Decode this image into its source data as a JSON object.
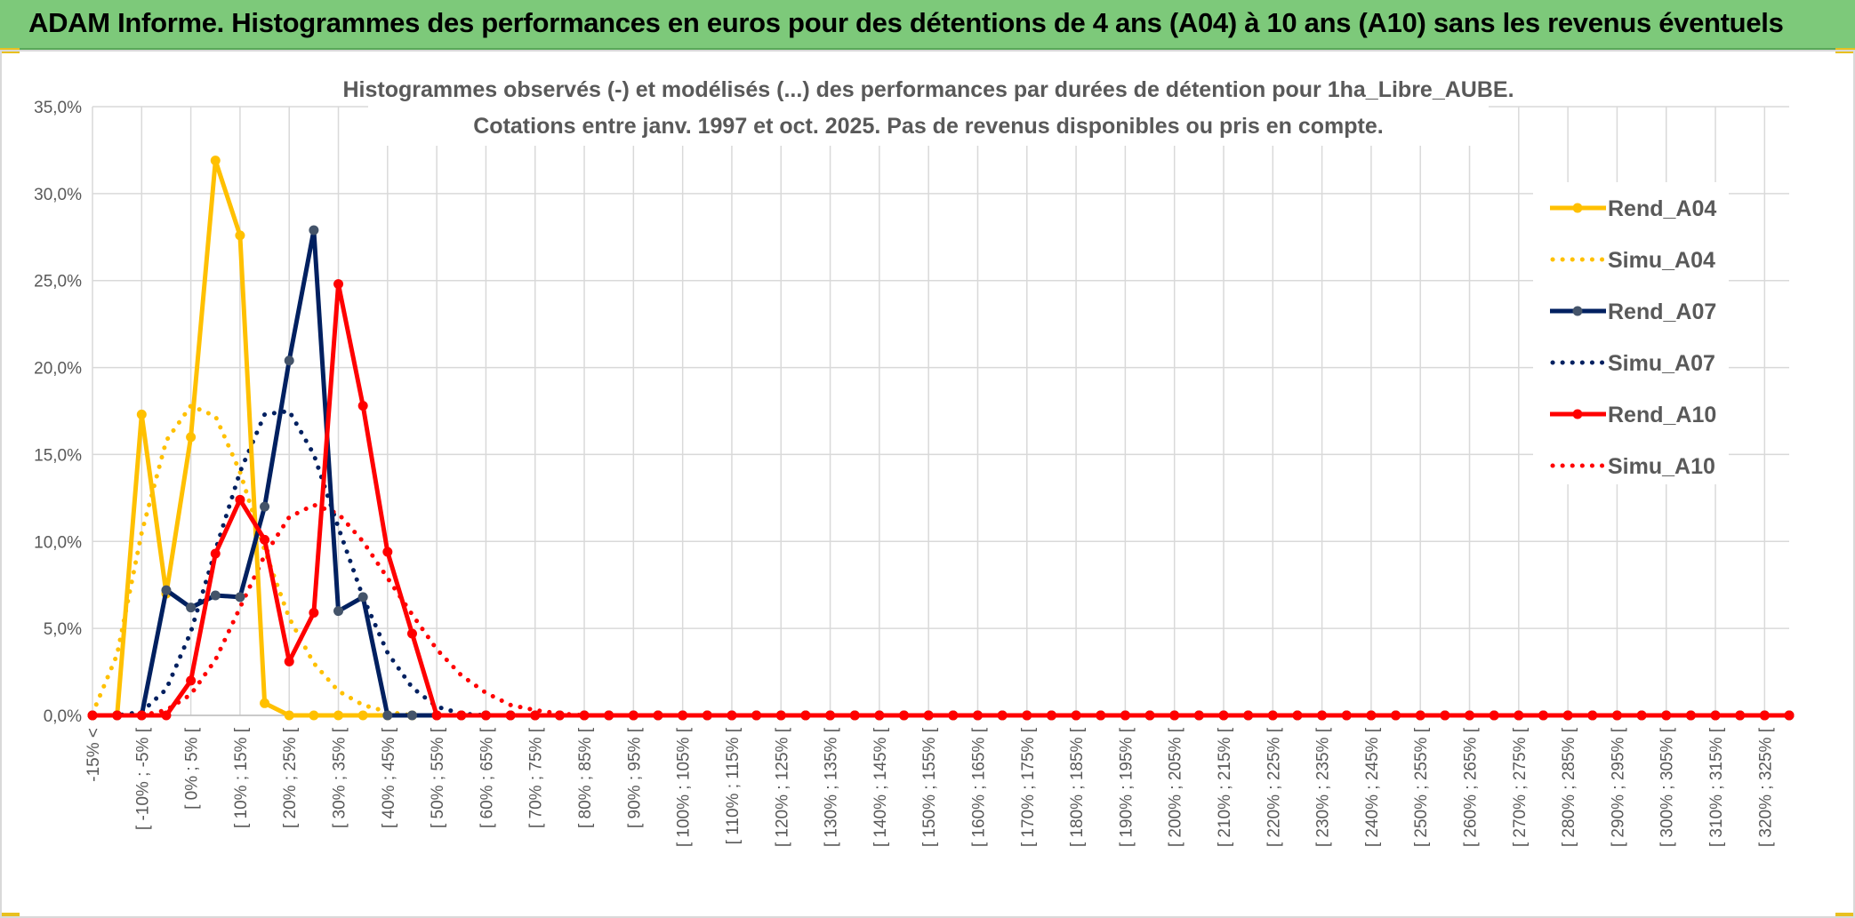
{
  "header": {
    "title": "ADAM Informe. Histogrammes des performances en euros pour des détentions de 4 ans (A04) à 10 ans (A10) sans les revenus éventuels"
  },
  "colors": {
    "header_bg": "#7dc97a",
    "A04": "#ffc000",
    "A07": "#002060",
    "A10": "#ff0000",
    "marker_A07": "#44546a"
  },
  "chart_data": {
    "type": "line",
    "title": "Histogrammes observés (-) et modélisés (...) des performances par durées de détention pour 1ha_Libre_AUBE.",
    "subtitle": "Cotations entre janv. 1997 et oct. 2025. Pas de revenus disponibles ou pris en compte.",
    "ylim": [
      0,
      35
    ],
    "y_ticks": [
      "0,0%",
      "5,0%",
      "10,0%",
      "15,0%",
      "20,0%",
      "25,0%",
      "30,0%",
      "35,0%"
    ],
    "legend_position": "right",
    "grid": true,
    "x_labels": [
      "-15% <",
      "[ -10% ; -5% [",
      "[ 0% ; 5% [",
      "[ 10% ; 15% [",
      "[ 20% ; 25% [",
      "[ 30% ; 35% [",
      "[ 40% ; 45% [",
      "[ 50% ; 55% [",
      "[ 60% ; 65% [",
      "[ 70% ; 75% [",
      "[ 80% ; 85% [",
      "[ 90% ; 95% [",
      "[ 100% ; 105% [",
      "[ 110% ; 115% [",
      "[ 120% ; 125% [",
      "[ 130% ; 135% [",
      "[ 140% ; 145% [",
      "[ 150% ; 155% [",
      "[ 160% ; 165% [",
      "[ 170% ; 175% [",
      "[ 180% ; 185% [",
      "[ 190% ; 195% [",
      "[ 200% ; 205% [",
      "[ 210% ; 215% [",
      "[ 220% ; 225% [",
      "[ 230% ; 235% [",
      "[ 240% ; 245% [",
      "[ 250% ; 255% [",
      "[ 260% ; 265% [",
      "[ 270% ; 275% [",
      "[ 280% ; 285% [",
      "[ 290% ; 295% [",
      "[ 300% ; 305% [",
      "[ 310% ; 315% [",
      "[ 320% ; 325% ["
    ],
    "series": [
      {
        "name": "Rend_A04",
        "style": "solid",
        "color": "#ffc000",
        "values": [
          0,
          0,
          17.3,
          7.0,
          16.0,
          31.9,
          27.6,
          0.7,
          0,
          0,
          0,
          0,
          0,
          0,
          0,
          0,
          0,
          0,
          0,
          0,
          0,
          0,
          0,
          0,
          0,
          0,
          0,
          0,
          0,
          0,
          0,
          0,
          0,
          0,
          0,
          0,
          0,
          0,
          0,
          0,
          0,
          0,
          0,
          0,
          0,
          0,
          0,
          0,
          0,
          0,
          0,
          0,
          0,
          0,
          0,
          0,
          0,
          0,
          0,
          0,
          0,
          0,
          0,
          0,
          0,
          0,
          0,
          0,
          0,
          0
        ]
      },
      {
        "name": "Simu_A04",
        "style": "dotted",
        "color": "#ffc000",
        "values": [
          0.1,
          3.5,
          10.5,
          15.8,
          17.8,
          17.2,
          14.0,
          9.5,
          5.6,
          3.0,
          1.4,
          0.6,
          0.2,
          0,
          0,
          0,
          0,
          0,
          0,
          0,
          0,
          0,
          0,
          0,
          0,
          0,
          0,
          0,
          0,
          0,
          0,
          0,
          0,
          0,
          0,
          0,
          0,
          0,
          0,
          0,
          0,
          0,
          0,
          0,
          0,
          0,
          0,
          0,
          0,
          0,
          0,
          0,
          0,
          0,
          0,
          0,
          0,
          0,
          0,
          0,
          0,
          0,
          0,
          0,
          0,
          0,
          0,
          0,
          0,
          0
        ]
      },
      {
        "name": "Rend_A07",
        "style": "solid",
        "color": "#002060",
        "values": [
          0,
          0,
          0,
          7.2,
          6.2,
          6.9,
          6.8,
          12.0,
          20.4,
          27.9,
          6.0,
          6.8,
          0,
          0,
          0,
          0,
          0,
          0,
          0,
          0,
          0,
          0,
          0,
          0,
          0,
          0,
          0,
          0,
          0,
          0,
          0,
          0,
          0,
          0,
          0,
          0,
          0,
          0,
          0,
          0,
          0,
          0,
          0,
          0,
          0,
          0,
          0,
          0,
          0,
          0,
          0,
          0,
          0,
          0,
          0,
          0,
          0,
          0,
          0,
          0,
          0,
          0,
          0,
          0,
          0,
          0,
          0,
          0,
          0,
          0
        ]
      },
      {
        "name": "Simu_A07",
        "style": "dotted",
        "color": "#002060",
        "values": [
          0,
          0,
          0.2,
          1.5,
          4.8,
          9.5,
          14.0,
          17.3,
          17.5,
          15.0,
          10.8,
          6.8,
          3.6,
          1.6,
          0.5,
          0.1,
          0,
          0,
          0,
          0,
          0,
          0,
          0,
          0,
          0,
          0,
          0,
          0,
          0,
          0,
          0,
          0,
          0,
          0,
          0,
          0,
          0,
          0,
          0,
          0,
          0,
          0,
          0,
          0,
          0,
          0,
          0,
          0,
          0,
          0,
          0,
          0,
          0,
          0,
          0,
          0,
          0,
          0,
          0,
          0,
          0,
          0,
          0,
          0,
          0,
          0,
          0,
          0,
          0,
          0
        ]
      },
      {
        "name": "Rend_A10",
        "style": "solid",
        "color": "#ff0000",
        "values": [
          0,
          0,
          0,
          0,
          2.0,
          9.3,
          12.4,
          10.1,
          3.1,
          5.9,
          24.8,
          17.8,
          9.4,
          4.7,
          0,
          0,
          0,
          0,
          0,
          0,
          0,
          0,
          0,
          0,
          0,
          0,
          0,
          0,
          0,
          0,
          0,
          0,
          0,
          0,
          0,
          0,
          0,
          0,
          0,
          0,
          0,
          0,
          0,
          0,
          0,
          0,
          0,
          0,
          0,
          0,
          0,
          0,
          0,
          0,
          0,
          0,
          0,
          0,
          0,
          0,
          0,
          0,
          0,
          0,
          0,
          0,
          0,
          0,
          0,
          0
        ]
      },
      {
        "name": "Simu_A10",
        "style": "dotted",
        "color": "#ff0000",
        "values": [
          0,
          0,
          0,
          0.3,
          1.2,
          3.2,
          6.2,
          9.2,
          11.4,
          12.1,
          11.6,
          10.0,
          7.9,
          5.8,
          3.8,
          2.3,
          1.3,
          0.6,
          0.3,
          0.1,
          0,
          0,
          0,
          0,
          0,
          0,
          0,
          0,
          0,
          0,
          0,
          0,
          0,
          0,
          0,
          0,
          0,
          0,
          0,
          0,
          0,
          0,
          0,
          0,
          0,
          0,
          0,
          0,
          0,
          0,
          0,
          0,
          0,
          0,
          0,
          0,
          0,
          0,
          0,
          0,
          0,
          0,
          0,
          0,
          0,
          0,
          0,
          0,
          0,
          0
        ]
      }
    ]
  }
}
